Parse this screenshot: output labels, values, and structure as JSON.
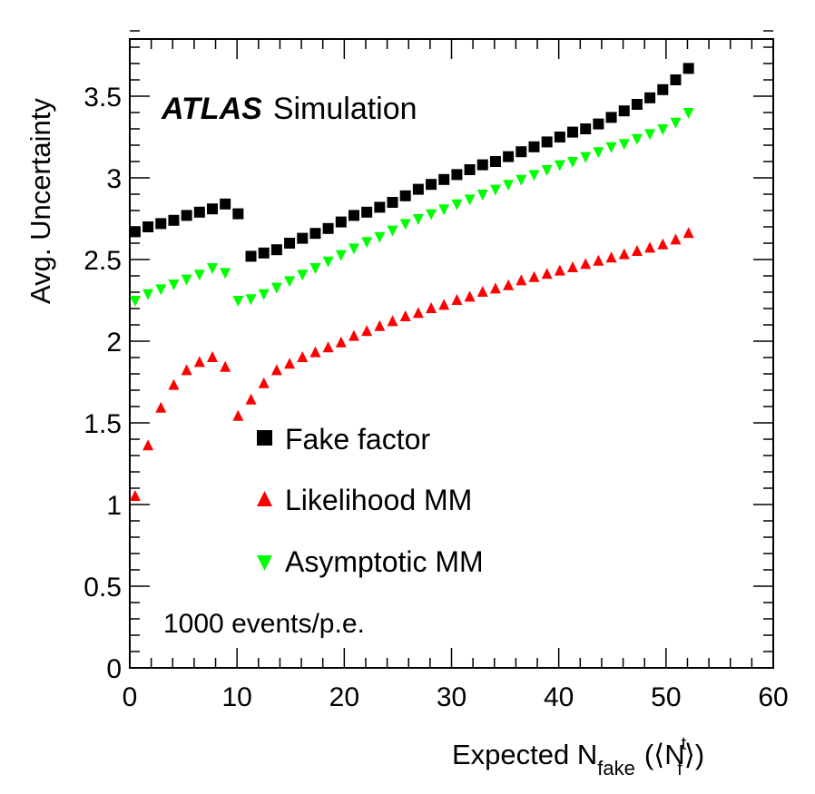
{
  "chart_data": {
    "type": "scatter",
    "title": "",
    "xlabel": "Expected N",
    "xlabel_sub": "fake",
    "xlabel_tail_open": "(⟨N",
    "xlabel_tail_sup": "t",
    "xlabel_tail_sub": "f",
    "xlabel_tail_close": "⟩)",
    "ylabel": "Avg. Uncertainty",
    "xlim": [
      0,
      60
    ],
    "ylim": [
      0,
      3.85
    ],
    "x_ticks": [
      0,
      10,
      20,
      30,
      40,
      50,
      60
    ],
    "x_tick_labels": [
      "0",
      "10",
      "20",
      "30",
      "40",
      "50",
      "60"
    ],
    "y_ticks": [
      0,
      0.5,
      1,
      1.5,
      2,
      2.5,
      3,
      3.5
    ],
    "y_tick_labels": [
      "0",
      "0.5",
      "1",
      "1.5",
      "2",
      "2.5",
      "3",
      "3.5"
    ],
    "grid": false,
    "legend_position": "center-left",
    "experiment": "ATLAS",
    "experiment_sub": "Simulation",
    "annotation": "1000 events/p.e.",
    "series": [
      {
        "name": "Fake factor",
        "marker": "square",
        "color": "#000000",
        "x": [
          0.5,
          1.7,
          2.9,
          4.1,
          5.3,
          6.5,
          7.7,
          8.9,
          10.1,
          11.3,
          12.5,
          13.7,
          14.9,
          16.1,
          17.3,
          18.5,
          19.7,
          20.9,
          22.1,
          23.3,
          24.5,
          25.7,
          26.9,
          28.1,
          29.3,
          30.5,
          31.7,
          32.9,
          34.1,
          35.3,
          36.5,
          37.7,
          38.9,
          40.1,
          41.3,
          42.5,
          43.7,
          44.9,
          46.1,
          47.3,
          48.5,
          49.7,
          50.9,
          52.1
        ],
        "y": [
          2.67,
          2.7,
          2.72,
          2.74,
          2.77,
          2.79,
          2.81,
          2.84,
          2.78,
          2.52,
          2.54,
          2.56,
          2.6,
          2.63,
          2.66,
          2.69,
          2.73,
          2.77,
          2.79,
          2.82,
          2.85,
          2.89,
          2.93,
          2.96,
          2.99,
          3.02,
          3.05,
          3.08,
          3.1,
          3.13,
          3.16,
          3.19,
          3.22,
          3.25,
          3.28,
          3.3,
          3.33,
          3.37,
          3.41,
          3.45,
          3.49,
          3.54,
          3.6,
          3.67
        ]
      },
      {
        "name": "Likelihood MM",
        "marker": "triangle-up",
        "color": "#ff0000",
        "x": [
          0.5,
          1.7,
          2.9,
          4.1,
          5.3,
          6.5,
          7.7,
          8.9,
          10.1,
          11.3,
          12.5,
          13.7,
          14.9,
          16.1,
          17.3,
          18.5,
          19.7,
          20.9,
          22.1,
          23.3,
          24.5,
          25.7,
          26.9,
          28.1,
          29.3,
          30.5,
          31.7,
          32.9,
          34.1,
          35.3,
          36.5,
          37.7,
          38.9,
          40.1,
          41.3,
          42.5,
          43.7,
          44.9,
          46.1,
          47.3,
          48.5,
          49.7,
          50.9,
          52.1
        ],
        "y": [
          1.05,
          1.36,
          1.59,
          1.73,
          1.82,
          1.87,
          1.9,
          1.84,
          1.54,
          1.64,
          1.74,
          1.82,
          1.86,
          1.9,
          1.93,
          1.96,
          1.99,
          2.03,
          2.06,
          2.09,
          2.12,
          2.15,
          2.17,
          2.2,
          2.22,
          2.25,
          2.27,
          2.3,
          2.32,
          2.34,
          2.37,
          2.39,
          2.41,
          2.43,
          2.45,
          2.47,
          2.49,
          2.51,
          2.53,
          2.55,
          2.57,
          2.59,
          2.62,
          2.66
        ]
      },
      {
        "name": "Asymptotic MM",
        "marker": "triangle-down",
        "color": "#00ff00",
        "x": [
          0.5,
          1.7,
          2.9,
          4.1,
          5.3,
          6.5,
          7.7,
          8.9,
          10.1,
          11.3,
          12.5,
          13.7,
          14.9,
          16.1,
          17.3,
          18.5,
          19.7,
          20.9,
          22.1,
          23.3,
          24.5,
          25.7,
          26.9,
          28.1,
          29.3,
          30.5,
          31.7,
          32.9,
          34.1,
          35.3,
          36.5,
          37.7,
          38.9,
          40.1,
          41.3,
          42.5,
          43.7,
          44.9,
          46.1,
          47.3,
          48.5,
          49.7,
          50.9,
          52.1
        ],
        "y": [
          2.25,
          2.29,
          2.32,
          2.35,
          2.38,
          2.41,
          2.45,
          2.42,
          2.25,
          2.26,
          2.29,
          2.33,
          2.37,
          2.41,
          2.45,
          2.49,
          2.53,
          2.57,
          2.61,
          2.64,
          2.68,
          2.72,
          2.75,
          2.78,
          2.81,
          2.84,
          2.87,
          2.9,
          2.93,
          2.96,
          2.99,
          3.02,
          3.05,
          3.08,
          3.1,
          3.13,
          3.16,
          3.19,
          3.21,
          3.24,
          3.27,
          3.3,
          3.34,
          3.4
        ]
      }
    ]
  }
}
